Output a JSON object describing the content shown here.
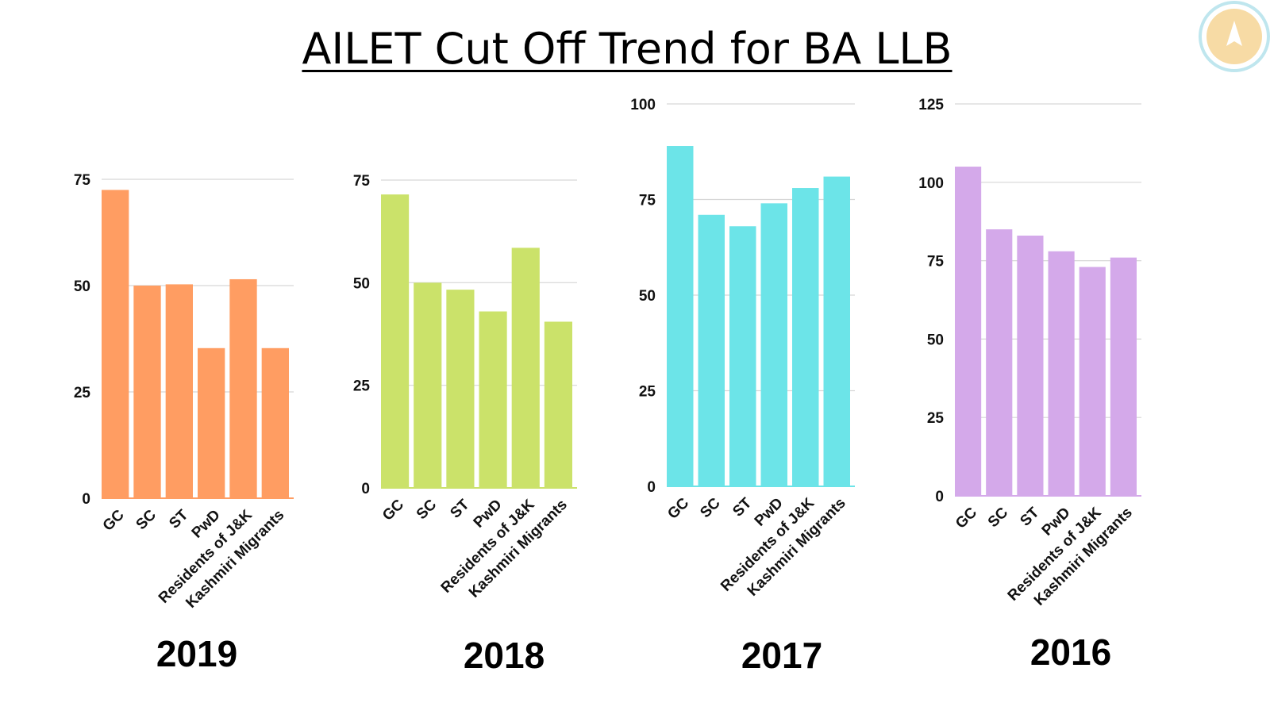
{
  "title": "AILET Cut Off Trend for BA LLB",
  "logo": {
    "icon": "arrow-up-logo-icon",
    "ring_color": "#bfe6ee",
    "fill_color": "#f7dba5"
  },
  "chart_data": [
    {
      "type": "bar",
      "year": "2019",
      "color": "#ff9d62",
      "categories": [
        "GC",
        "SC",
        "ST",
        "PwD",
        "Residents of J&K",
        "Kashmiri Migrants"
      ],
      "values": [
        72.5,
        50,
        50.3,
        35.3,
        51.5,
        35.3
      ],
      "yticks": [
        0,
        25,
        50,
        75
      ],
      "ylim": [
        0,
        75
      ],
      "xlabel": "",
      "ylabel": "",
      "grid": true
    },
    {
      "type": "bar",
      "year": "2018",
      "color": "#cbe26a",
      "categories": [
        "GC",
        "SC",
        "ST",
        "PwD",
        "Residents of J&K",
        "Kashmiri Migrants"
      ],
      "values": [
        71.5,
        50,
        48.3,
        43,
        58.5,
        40.5
      ],
      "yticks": [
        0,
        25,
        50,
        75
      ],
      "ylim": [
        0,
        75
      ],
      "xlabel": "",
      "ylabel": "",
      "grid": true
    },
    {
      "type": "bar",
      "year": "2017",
      "color": "#6ce4e8",
      "categories": [
        "GC",
        "SC",
        "ST",
        "PwD",
        "Residents of J&K",
        "Kashmiri Migrants"
      ],
      "values": [
        89,
        71,
        68,
        74,
        78,
        81
      ],
      "yticks": [
        0,
        25,
        50,
        75,
        100
      ],
      "ylim": [
        0,
        100
      ],
      "xlabel": "",
      "ylabel": "",
      "grid": true
    },
    {
      "type": "bar",
      "year": "2016",
      "color": "#d4a9ea",
      "categories": [
        "GC",
        "SC",
        "ST",
        "PwD",
        "Residents of J&K",
        "Kashmiri Migrants"
      ],
      "values": [
        105,
        85,
        83,
        78,
        73,
        76
      ],
      "yticks": [
        0,
        25,
        50,
        75,
        100,
        125
      ],
      "ylim": [
        0,
        125
      ],
      "xlabel": "",
      "ylabel": "",
      "grid": true
    }
  ]
}
